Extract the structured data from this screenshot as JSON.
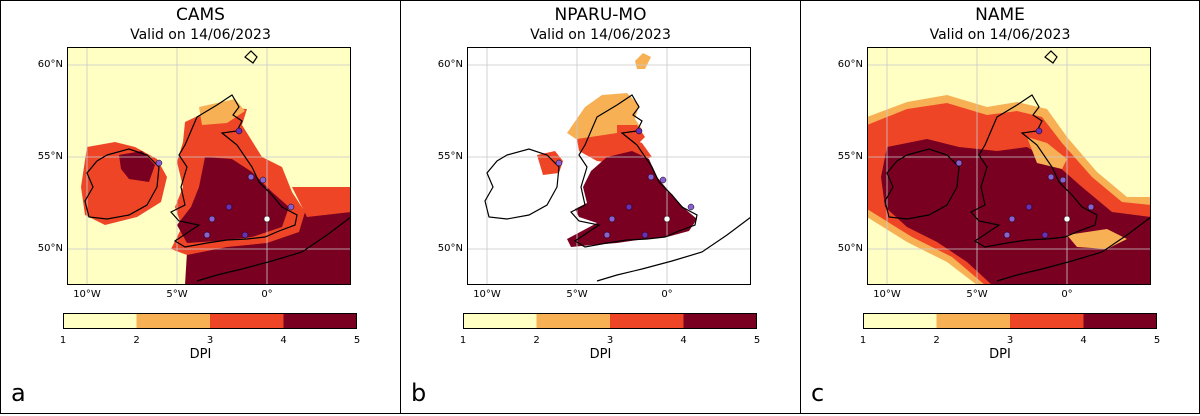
{
  "legend": {
    "colors": [
      "#ffffc4",
      "#f7b154",
      "#ef4527",
      "#7a0022"
    ],
    "ticks": [
      "1",
      "2",
      "3",
      "4",
      "5"
    ],
    "label": "DPI"
  },
  "axes": {
    "lat_labels": [
      "60°N",
      "55°N",
      "50°N"
    ],
    "lon_labels": [
      "10°W",
      "5°W",
      "0°"
    ]
  },
  "panels": [
    {
      "letter": "a",
      "title": "CAMS",
      "subtitle": "Valid on 14/06/2023",
      "background": "yellow",
      "levels": {
        "north_scotland": 2,
        "mid_scotland": 3,
        "southern_scotland": 4,
        "england_wales": 4,
        "ireland_west": 3,
        "northern_ireland": 4,
        "north_sea": 3,
        "france": 4
      }
    },
    {
      "letter": "b",
      "title": "NPARU-MO",
      "subtitle": "Valid on 14/06/2023",
      "background": "white",
      "levels": {
        "north_scotland": 2,
        "mid_scotland": 3,
        "southern_scotland": 4,
        "england_wales": 4,
        "northern_ireland": 3
      }
    },
    {
      "letter": "c",
      "title": "NAME",
      "subtitle": "Valid on 14/06/2023",
      "background": "yellow",
      "levels": {
        "atlantic_band": 3,
        "north_scotland": 3,
        "ireland": 4,
        "england_wales": 4,
        "north_sea": 4,
        "france": 4
      }
    }
  ],
  "sites": [
    {
      "name": "site-aberdeen",
      "fill": "#6a2fb4"
    },
    {
      "name": "site-belfast",
      "fill": "#8a5fcf"
    },
    {
      "name": "site-york",
      "fill": "#8a5fcf"
    },
    {
      "name": "site-hull",
      "fill": "#8a5fcf"
    },
    {
      "name": "site-worcester",
      "fill": "#6a2fb4"
    },
    {
      "name": "site-swansea",
      "fill": "#8a5fcf"
    },
    {
      "name": "site-exeter",
      "fill": "#8a5fcf"
    },
    {
      "name": "site-southampton",
      "fill": "#6a2fb4"
    },
    {
      "name": "site-london",
      "fill": "#ffffff"
    },
    {
      "name": "site-kent",
      "fill": "#8a5fcf"
    }
  ]
}
